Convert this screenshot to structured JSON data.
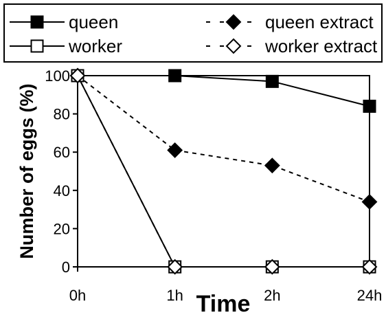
{
  "chart_data": {
    "type": "line",
    "categories": [
      "0h",
      "1h",
      "2h",
      "24h"
    ],
    "xlabel": "Time",
    "ylabel": "Number of eggs (%)",
    "ylim": [
      0,
      100
    ],
    "yticks": [
      "0",
      "20",
      "40",
      "60",
      "80",
      "100"
    ],
    "grid": false,
    "legend_position": "top",
    "series": [
      {
        "name": "queen",
        "values": [
          100,
          100,
          97,
          84
        ],
        "line": "solid",
        "marker": "filled-square",
        "color": "#000000"
      },
      {
        "name": "worker",
        "values": [
          100,
          0,
          0,
          0
        ],
        "line": "solid",
        "marker": "open-square",
        "color": "#000000"
      },
      {
        "name": "queen extract",
        "values": [
          100,
          61,
          53,
          34
        ],
        "line": "dashed",
        "marker": "filled-diamond",
        "color": "#000000"
      },
      {
        "name": "worker extract",
        "values": [
          100,
          0,
          0,
          0
        ],
        "line": "dashed",
        "marker": "open-diamond",
        "color": "#000000"
      }
    ]
  }
}
